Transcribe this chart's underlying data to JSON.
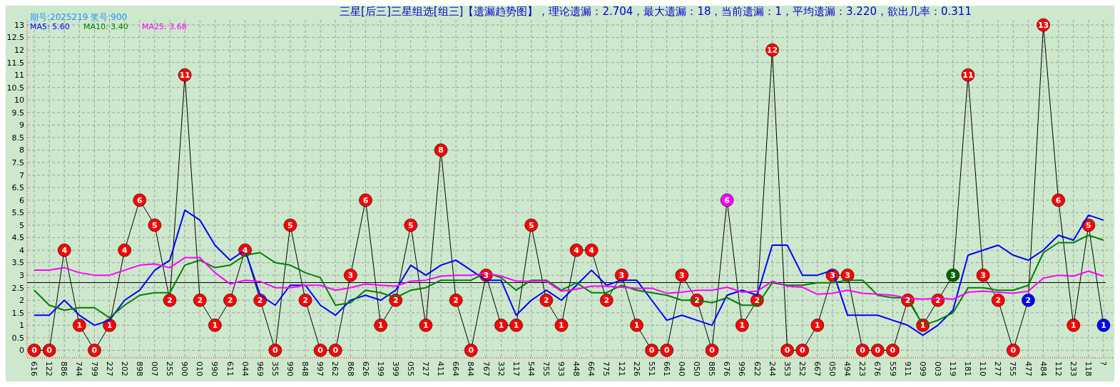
{
  "chart_data": {
    "type": "line",
    "title": "三星[后三]三星组选[组三]【遗漏趋势图】，理论遗漏：2.704，最大遗漏：18，当前遗漏：1，平均遗漏：3.220，欲出几率：0.311",
    "subtitle": "期号:2025219 奖号:900",
    "categories": [
      "616",
      "122",
      "886",
      "744",
      "799",
      "227",
      "202",
      "898",
      "007",
      "255",
      "900",
      "010",
      "990",
      "611",
      "044",
      "969",
      "355",
      "990",
      "848",
      "997",
      "262",
      "868",
      "626",
      "199",
      "399",
      "055",
      "727",
      "411",
      "664",
      "844",
      "767",
      "332",
      "117",
      "544",
      "755",
      "933",
      "448",
      "664",
      "775",
      "121",
      "226",
      "551",
      "661",
      "040",
      "050",
      "885",
      "676",
      "996",
      "622",
      "244",
      "353",
      "252",
      "667",
      "050",
      "494",
      "223",
      "676",
      "559",
      "911",
      "099",
      "003",
      "119",
      "181",
      "110",
      "277",
      "755",
      "477",
      "484",
      "112",
      "233",
      "118",
      "?"
    ],
    "series": [
      {
        "name": "MA5: 5.60",
        "color": "#0000ff",
        "marker": "none",
        "values": [
          1.4,
          1.4,
          2.0,
          1.4,
          1.0,
          1.2,
          2.0,
          2.4,
          3.2,
          3.6,
          5.6,
          5.2,
          4.2,
          3.6,
          4.0,
          2.2,
          1.8,
          2.6,
          2.6,
          1.8,
          1.4,
          2.0,
          2.2,
          2.0,
          2.4,
          3.4,
          3.0,
          3.4,
          3.6,
          3.2,
          2.8,
          2.8,
          1.4,
          2.0,
          2.4,
          2.0,
          2.6,
          3.2,
          2.6,
          2.8,
          2.8,
          2.0,
          1.2,
          1.4,
          1.2,
          1.0,
          2.2,
          2.4,
          2.2,
          4.2,
          4.2,
          3.0,
          3.0,
          3.2,
          1.4,
          1.4,
          1.4,
          1.2,
          1.0,
          0.6,
          1.0,
          1.6,
          3.8,
          4.0,
          4.2,
          3.8,
          3.6,
          4.0,
          4.6,
          4.4,
          5.4,
          5.2
        ]
      },
      {
        "name": "MA10: 3.40",
        "color": "#008000",
        "marker": "none",
        "values": [
          2.4,
          1.8,
          1.6,
          1.7,
          1.7,
          1.3,
          1.8,
          2.2,
          2.3,
          2.3,
          3.4,
          3.6,
          3.3,
          3.4,
          3.8,
          3.9,
          3.5,
          3.4,
          3.1,
          2.9,
          1.8,
          1.9,
          2.4,
          2.3,
          2.1,
          2.4,
          2.5,
          2.8,
          2.8,
          2.8,
          3.1,
          2.9,
          2.4,
          2.8,
          2.8,
          2.4,
          2.7,
          2.3,
          2.3,
          2.6,
          2.4,
          2.3,
          2.2,
          2.0,
          2.0,
          1.9,
          2.1,
          1.8,
          1.8,
          2.7,
          2.6,
          2.6,
          2.7,
          2.7,
          2.8,
          2.8,
          2.2,
          2.1,
          2.1,
          1.0,
          1.2,
          1.5,
          2.5,
          2.5,
          2.4,
          2.4,
          2.6,
          3.9,
          4.3,
          4.3,
          4.6,
          4.4
        ]
      },
      {
        "name": "MA25: 3.68",
        "color": "#ff00ff",
        "marker": "none",
        "values": [
          3.2,
          3.2,
          3.3,
          3.1,
          3.0,
          3.0,
          3.2,
          3.4,
          3.45,
          3.3,
          3.7,
          3.7,
          3.1,
          2.65,
          2.8,
          2.75,
          2.5,
          2.5,
          2.6,
          2.6,
          2.4,
          2.5,
          2.65,
          2.6,
          2.56,
          2.76,
          2.8,
          2.96,
          3.0,
          3.0,
          3.08,
          2.96,
          2.76,
          2.76,
          2.76,
          2.36,
          2.44,
          2.56,
          2.56,
          2.52,
          2.48,
          2.48,
          2.28,
          2.32,
          2.4,
          2.4,
          2.52,
          2.32,
          2.36,
          2.76,
          2.56,
          2.52,
          2.24,
          2.28,
          2.4,
          2.28,
          2.24,
          2.2,
          2.08,
          2.04,
          2.08,
          2.04,
          2.32,
          2.36,
          2.32,
          2.28,
          2.36,
          2.88,
          3.0,
          2.96,
          3.16,
          2.96
        ]
      },
      {
        "color": "#000000",
        "marker": "circle",
        "data_labels": true,
        "values": [
          0,
          0,
          4,
          1,
          0,
          1,
          4,
          6,
          5,
          2,
          11,
          2,
          1,
          2,
          4,
          2,
          0,
          5,
          2,
          0,
          0,
          3,
          6,
          1,
          2,
          5,
          1,
          8,
          2,
          0,
          3,
          1,
          1,
          5,
          2,
          1,
          4,
          4,
          2,
          3,
          1,
          0,
          0,
          3,
          2,
          0,
          6,
          1,
          2,
          12,
          0,
          0,
          1,
          3,
          3,
          0,
          0,
          0,
          2,
          1,
          2,
          3,
          11,
          3,
          2,
          0,
          2,
          13,
          6,
          1,
          5,
          1
        ],
        "colors": [
          "#ff0000",
          "#ff0000",
          "#ff0000",
          "#ff0000",
          "#ff0000",
          "#ff0000",
          "#ff0000",
          "#ff0000",
          "#ff0000",
          "#ff0000",
          "#ff0000",
          "#ff0000",
          "#ff0000",
          "#ff0000",
          "#ff0000",
          "#ff0000",
          "#ff0000",
          "#ff0000",
          "#ff0000",
          "#ff0000",
          "#ff0000",
          "#ff0000",
          "#ff0000",
          "#ff0000",
          "#ff0000",
          "#ff0000",
          "#ff0000",
          "#ff0000",
          "#ff0000",
          "#ff0000",
          "#ff0000",
          "#ff0000",
          "#ff0000",
          "#ff0000",
          "#ff0000",
          "#ff0000",
          "#ff0000",
          "#ff0000",
          "#ff0000",
          "#ff0000",
          "#ff0000",
          "#ff0000",
          "#ff0000",
          "#ff0000",
          "#ff0000",
          "#ff0000",
          "#ff00ff",
          "#ff0000",
          "#ff0000",
          "#ff0000",
          "#ff0000",
          "#ff0000",
          "#ff0000",
          "#ff0000",
          "#ff0000",
          "#ff0000",
          "#ff0000",
          "#ff0000",
          "#ff0000",
          "#ff0000",
          "#ff0000",
          "#006400",
          "#ff0000",
          "#ff0000",
          "#ff0000",
          "#ff0000",
          "#0000ff",
          "#ff0000",
          "#ff0000",
          "#ff0000",
          "#ff0000",
          "#0000ff"
        ]
      }
    ],
    "ref_lines": [
      {
        "axis": "y",
        "value": 2.704,
        "color": "#000000"
      }
    ],
    "ylim": [
      -0.3,
      13.2
    ],
    "yticks": [
      0,
      0.5,
      1,
      1.5,
      2,
      2.5,
      3,
      3.5,
      4,
      4.5,
      5,
      5.5,
      6,
      6.5,
      7,
      7.5,
      8,
      8.5,
      9,
      9.5,
      10,
      10.5,
      11,
      11.5,
      12,
      12.5,
      13
    ],
    "grid": true,
    "legend": "top left"
  }
}
